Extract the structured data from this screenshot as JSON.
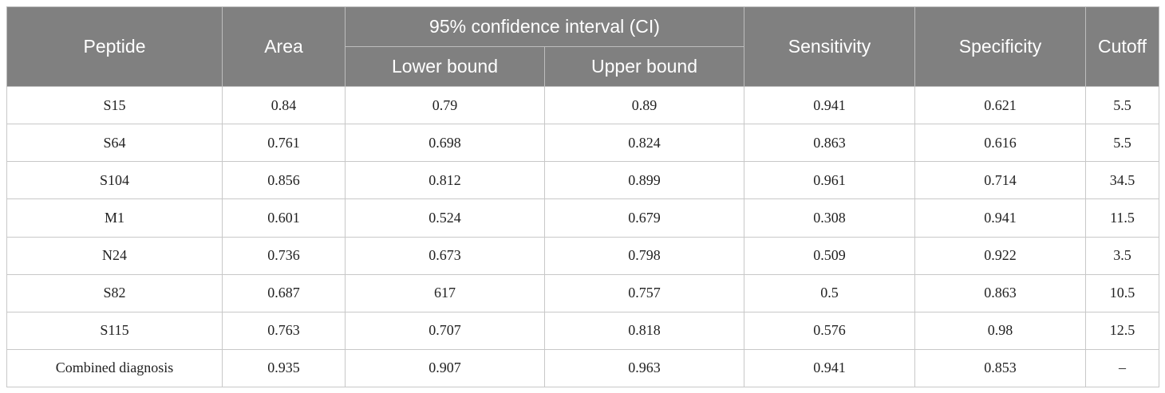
{
  "headers": {
    "peptide": "Peptide",
    "area": "Area",
    "ci": "95% confidence interval (CI)",
    "lower": "Lower bound",
    "upper": "Upper bound",
    "sensitivity": "Sensitivity",
    "specificity": "Specificity",
    "cutoff": "Cutoff"
  },
  "rows": [
    [
      "S15",
      "0.84",
      "0.79",
      "0.89",
      "0.941",
      "0.621",
      "5.5"
    ],
    [
      "S64",
      "0.761",
      "0.698",
      "0.824",
      "0.863",
      "0.616",
      "5.5"
    ],
    [
      "S104",
      "0.856",
      "0.812",
      "0.899",
      "0.961",
      "0.714",
      "34.5"
    ],
    [
      "M1",
      "0.601",
      "0.524",
      "0.679",
      "0.308",
      "0.941",
      "11.5"
    ],
    [
      "N24",
      "0.736",
      "0.673",
      "0.798",
      "0.509",
      "0.922",
      "3.5"
    ],
    [
      "S82",
      "0.687",
      "617",
      "0.757",
      "0.5",
      "0.863",
      "10.5"
    ],
    [
      "S115",
      "0.763",
      "0.707",
      "0.818",
      "0.576",
      "0.98",
      "12.5"
    ],
    [
      "Combined diagnosis",
      "0.935",
      "0.907",
      "0.963",
      "0.941",
      "0.853",
      "–"
    ]
  ]
}
